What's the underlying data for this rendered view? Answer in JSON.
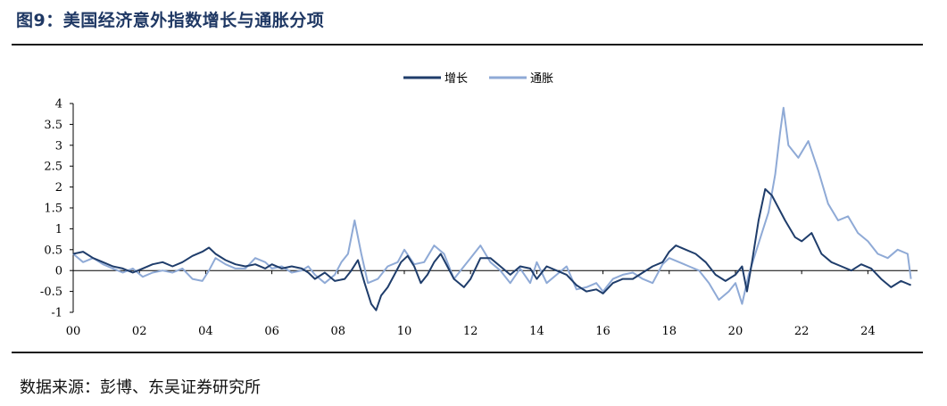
{
  "header": {
    "title": "图9：美国经济意外指数增长与通胀分项"
  },
  "footer": {
    "source": "数据来源：彭博、东吴证券研究所"
  },
  "colors": {
    "growth": "#1f3d6b",
    "inflation": "#8faad6",
    "axis": "#000000",
    "rule": "#1a1a1a"
  },
  "chart_data": {
    "type": "line",
    "xlabel": "",
    "ylabel": "",
    "xlim": [
      2000,
      2025.5
    ],
    "ylim": [
      -1,
      4
    ],
    "x_ticks": [
      {
        "v": 2000,
        "label": "00"
      },
      {
        "v": 2002,
        "label": "02"
      },
      {
        "v": 2004,
        "label": "04"
      },
      {
        "v": 2006,
        "label": "06"
      },
      {
        "v": 2008,
        "label": "08"
      },
      {
        "v": 2010,
        "label": "10"
      },
      {
        "v": 2012,
        "label": "12"
      },
      {
        "v": 2014,
        "label": "14"
      },
      {
        "v": 2016,
        "label": "16"
      },
      {
        "v": 2018,
        "label": "18"
      },
      {
        "v": 2020,
        "label": "20"
      },
      {
        "v": 2022,
        "label": "22"
      },
      {
        "v": 2024,
        "label": "24"
      }
    ],
    "y_ticks": [
      {
        "v": 4,
        "label": "4"
      },
      {
        "v": 3.5,
        "label": "3.5"
      },
      {
        "v": 3,
        "label": "3"
      },
      {
        "v": 2.5,
        "label": "2.5"
      },
      {
        "v": 2,
        "label": "2"
      },
      {
        "v": 1.5,
        "label": "1.5"
      },
      {
        "v": 1,
        "label": "1"
      },
      {
        "v": 0.5,
        "label": "0.5"
      },
      {
        "v": 0,
        "label": "0"
      },
      {
        "v": -0.5,
        "label": "-0.5"
      },
      {
        "v": -1,
        "label": "-1"
      }
    ],
    "legend_position": "top-center",
    "series": [
      {
        "name": "增长",
        "color": "#1f3d6b",
        "points": [
          [
            2000.0,
            0.4
          ],
          [
            2000.3,
            0.45
          ],
          [
            2000.6,
            0.3
          ],
          [
            2000.9,
            0.2
          ],
          [
            2001.2,
            0.1
          ],
          [
            2001.5,
            0.05
          ],
          [
            2001.8,
            -0.05
          ],
          [
            2002.1,
            0.05
          ],
          [
            2002.4,
            0.15
          ],
          [
            2002.7,
            0.2
          ],
          [
            2003.0,
            0.1
          ],
          [
            2003.3,
            0.2
          ],
          [
            2003.6,
            0.35
          ],
          [
            2003.9,
            0.45
          ],
          [
            2004.1,
            0.55
          ],
          [
            2004.3,
            0.4
          ],
          [
            2004.6,
            0.25
          ],
          [
            2004.9,
            0.15
          ],
          [
            2005.2,
            0.1
          ],
          [
            2005.5,
            0.15
          ],
          [
            2005.8,
            0.05
          ],
          [
            2006.0,
            0.15
          ],
          [
            2006.3,
            0.05
          ],
          [
            2006.6,
            0.1
          ],
          [
            2006.9,
            0.05
          ],
          [
            2007.1,
            -0.05
          ],
          [
            2007.3,
            -0.2
          ],
          [
            2007.6,
            -0.05
          ],
          [
            2007.9,
            -0.25
          ],
          [
            2008.2,
            -0.2
          ],
          [
            2008.4,
            0.0
          ],
          [
            2008.6,
            0.25
          ],
          [
            2008.8,
            -0.3
          ],
          [
            2009.0,
            -0.8
          ],
          [
            2009.15,
            -0.95
          ],
          [
            2009.3,
            -0.6
          ],
          [
            2009.5,
            -0.4
          ],
          [
            2009.7,
            -0.1
          ],
          [
            2009.9,
            0.2
          ],
          [
            2010.1,
            0.35
          ],
          [
            2010.3,
            0.1
          ],
          [
            2010.5,
            -0.3
          ],
          [
            2010.7,
            -0.1
          ],
          [
            2010.9,
            0.2
          ],
          [
            2011.1,
            0.4
          ],
          [
            2011.3,
            0.1
          ],
          [
            2011.5,
            -0.2
          ],
          [
            2011.8,
            -0.4
          ],
          [
            2012.0,
            -0.2
          ],
          [
            2012.3,
            0.3
          ],
          [
            2012.6,
            0.3
          ],
          [
            2012.9,
            0.1
          ],
          [
            2013.2,
            -0.1
          ],
          [
            2013.5,
            0.1
          ],
          [
            2013.8,
            0.05
          ],
          [
            2014.0,
            -0.2
          ],
          [
            2014.3,
            0.1
          ],
          [
            2014.6,
            0.0
          ],
          [
            2014.9,
            -0.1
          ],
          [
            2015.2,
            -0.35
          ],
          [
            2015.5,
            -0.5
          ],
          [
            2015.8,
            -0.45
          ],
          [
            2016.0,
            -0.55
          ],
          [
            2016.3,
            -0.3
          ],
          [
            2016.6,
            -0.2
          ],
          [
            2016.9,
            -0.2
          ],
          [
            2017.2,
            -0.05
          ],
          [
            2017.5,
            0.1
          ],
          [
            2017.8,
            0.2
          ],
          [
            2018.0,
            0.45
          ],
          [
            2018.2,
            0.6
          ],
          [
            2018.5,
            0.5
          ],
          [
            2018.8,
            0.4
          ],
          [
            2019.1,
            0.2
          ],
          [
            2019.4,
            -0.1
          ],
          [
            2019.7,
            -0.25
          ],
          [
            2020.0,
            -0.1
          ],
          [
            2020.2,
            0.1
          ],
          [
            2020.35,
            -0.5
          ],
          [
            2020.5,
            0.2
          ],
          [
            2020.7,
            1.2
          ],
          [
            2020.9,
            1.95
          ],
          [
            2021.1,
            1.8
          ],
          [
            2021.3,
            1.5
          ],
          [
            2021.5,
            1.2
          ],
          [
            2021.8,
            0.8
          ],
          [
            2022.0,
            0.7
          ],
          [
            2022.3,
            0.9
          ],
          [
            2022.6,
            0.4
          ],
          [
            2022.9,
            0.2
          ],
          [
            2023.2,
            0.1
          ],
          [
            2023.5,
            0.0
          ],
          [
            2023.8,
            0.15
          ],
          [
            2024.1,
            0.05
          ],
          [
            2024.4,
            -0.2
          ],
          [
            2024.7,
            -0.4
          ],
          [
            2025.0,
            -0.25
          ],
          [
            2025.3,
            -0.35
          ]
        ]
      },
      {
        "name": "通胀",
        "color": "#8faad6",
        "points": [
          [
            2000.0,
            0.4
          ],
          [
            2000.3,
            0.2
          ],
          [
            2000.6,
            0.3
          ],
          [
            2000.9,
            0.15
          ],
          [
            2001.2,
            0.05
          ],
          [
            2001.5,
            -0.05
          ],
          [
            2001.8,
            0.05
          ],
          [
            2002.1,
            -0.15
          ],
          [
            2002.4,
            -0.05
          ],
          [
            2002.7,
            0.0
          ],
          [
            2003.0,
            -0.05
          ],
          [
            2003.3,
            0.05
          ],
          [
            2003.6,
            -0.2
          ],
          [
            2003.9,
            -0.25
          ],
          [
            2004.1,
            0.0
          ],
          [
            2004.3,
            0.3
          ],
          [
            2004.6,
            0.15
          ],
          [
            2004.9,
            0.05
          ],
          [
            2005.2,
            0.05
          ],
          [
            2005.5,
            0.3
          ],
          [
            2005.8,
            0.2
          ],
          [
            2006.0,
            0.05
          ],
          [
            2006.3,
            0.1
          ],
          [
            2006.6,
            -0.05
          ],
          [
            2006.9,
            0.0
          ],
          [
            2007.1,
            0.1
          ],
          [
            2007.3,
            -0.1
          ],
          [
            2007.6,
            -0.3
          ],
          [
            2007.9,
            -0.1
          ],
          [
            2008.1,
            0.2
          ],
          [
            2008.3,
            0.4
          ],
          [
            2008.5,
            1.2
          ],
          [
            2008.7,
            0.4
          ],
          [
            2008.9,
            -0.3
          ],
          [
            2009.2,
            -0.2
          ],
          [
            2009.5,
            0.1
          ],
          [
            2009.8,
            0.2
          ],
          [
            2010.0,
            0.5
          ],
          [
            2010.3,
            0.15
          ],
          [
            2010.6,
            0.2
          ],
          [
            2010.9,
            0.6
          ],
          [
            2011.2,
            0.4
          ],
          [
            2011.5,
            -0.2
          ],
          [
            2011.8,
            0.1
          ],
          [
            2012.0,
            0.3
          ],
          [
            2012.3,
            0.6
          ],
          [
            2012.6,
            0.2
          ],
          [
            2012.9,
            0.0
          ],
          [
            2013.2,
            -0.3
          ],
          [
            2013.5,
            0.05
          ],
          [
            2013.8,
            -0.3
          ],
          [
            2014.0,
            0.2
          ],
          [
            2014.3,
            -0.3
          ],
          [
            2014.6,
            -0.1
          ],
          [
            2014.9,
            0.1
          ],
          [
            2015.2,
            -0.45
          ],
          [
            2015.5,
            -0.4
          ],
          [
            2015.8,
            -0.3
          ],
          [
            2016.0,
            -0.5
          ],
          [
            2016.3,
            -0.2
          ],
          [
            2016.6,
            -0.1
          ],
          [
            2016.9,
            -0.05
          ],
          [
            2017.2,
            -0.2
          ],
          [
            2017.5,
            -0.3
          ],
          [
            2017.8,
            0.15
          ],
          [
            2018.0,
            0.3
          ],
          [
            2018.3,
            0.2
          ],
          [
            2018.6,
            0.1
          ],
          [
            2018.9,
            0.0
          ],
          [
            2019.2,
            -0.3
          ],
          [
            2019.5,
            -0.7
          ],
          [
            2019.8,
            -0.5
          ],
          [
            2020.0,
            -0.3
          ],
          [
            2020.2,
            -0.8
          ],
          [
            2020.4,
            -0.1
          ],
          [
            2020.6,
            0.4
          ],
          [
            2020.8,
            0.9
          ],
          [
            2021.0,
            1.4
          ],
          [
            2021.2,
            2.3
          ],
          [
            2021.35,
            3.3
          ],
          [
            2021.45,
            3.9
          ],
          [
            2021.6,
            3.0
          ],
          [
            2021.9,
            2.7
          ],
          [
            2022.2,
            3.1
          ],
          [
            2022.5,
            2.4
          ],
          [
            2022.8,
            1.6
          ],
          [
            2023.1,
            1.2
          ],
          [
            2023.4,
            1.3
          ],
          [
            2023.7,
            0.9
          ],
          [
            2024.0,
            0.7
          ],
          [
            2024.3,
            0.4
          ],
          [
            2024.6,
            0.3
          ],
          [
            2024.9,
            0.5
          ],
          [
            2025.2,
            0.4
          ],
          [
            2025.3,
            -0.2
          ]
        ]
      }
    ]
  }
}
